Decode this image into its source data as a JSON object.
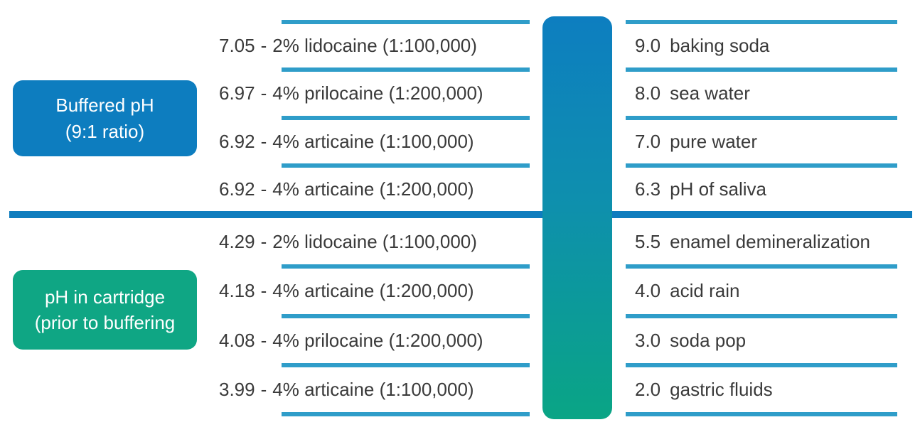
{
  "palette": {
    "box_blue": "#0d7dbf",
    "box_green": "#0fa684",
    "bar_top": "#0d7ec0",
    "bar_bottom": "#0aa585",
    "divider_blue": "#0f7dbe",
    "line_blue": "#2f9dc9",
    "text_dark": "#3a3a3a"
  },
  "misc": {
    "dash": "-"
  },
  "labels": {
    "buffered": {
      "line1": "Buffered pH",
      "line2": "(9:1 ratio)"
    },
    "cartridge": {
      "line1": "pH in cartridge",
      "line2": "(prior to buffering"
    }
  },
  "anesthetics": {
    "buffered": [
      {
        "ph": "7.05",
        "name": "2% lidocaine (1:100,000)"
      },
      {
        "ph": "6.97",
        "name": "4% prilocaine (1:200,000)"
      },
      {
        "ph": "6.92",
        "name": "4% articaine  (1:100,000)"
      },
      {
        "ph": "6.92",
        "name": "4% articaine  (1:200,000)"
      }
    ],
    "unbuffered": [
      {
        "ph": "4.29",
        "name": "2% lidocaine (1:100,000)"
      },
      {
        "ph": "4.18",
        "name": "4% articaine  (1:200,000)"
      },
      {
        "ph": "4.08",
        "name": "4% prilocaine (1:200,000)"
      },
      {
        "ph": "3.99",
        "name": "4% articaine  (1:100,000)"
      }
    ]
  },
  "reference_substances": {
    "upper": [
      {
        "ph": "9.0",
        "name": "baking soda"
      },
      {
        "ph": "8.0",
        "name": "sea water"
      },
      {
        "ph": "7.0",
        "name": "pure water"
      },
      {
        "ph": "6.3",
        "name": "pH of saliva"
      }
    ],
    "lower": [
      {
        "ph": "5.5",
        "name": "enamel demineralization"
      },
      {
        "ph": "4.0",
        "name": "acid rain"
      },
      {
        "ph": "3.0",
        "name": "soda pop"
      },
      {
        "ph": "2.0",
        "name": "gastric fluids"
      }
    ]
  }
}
